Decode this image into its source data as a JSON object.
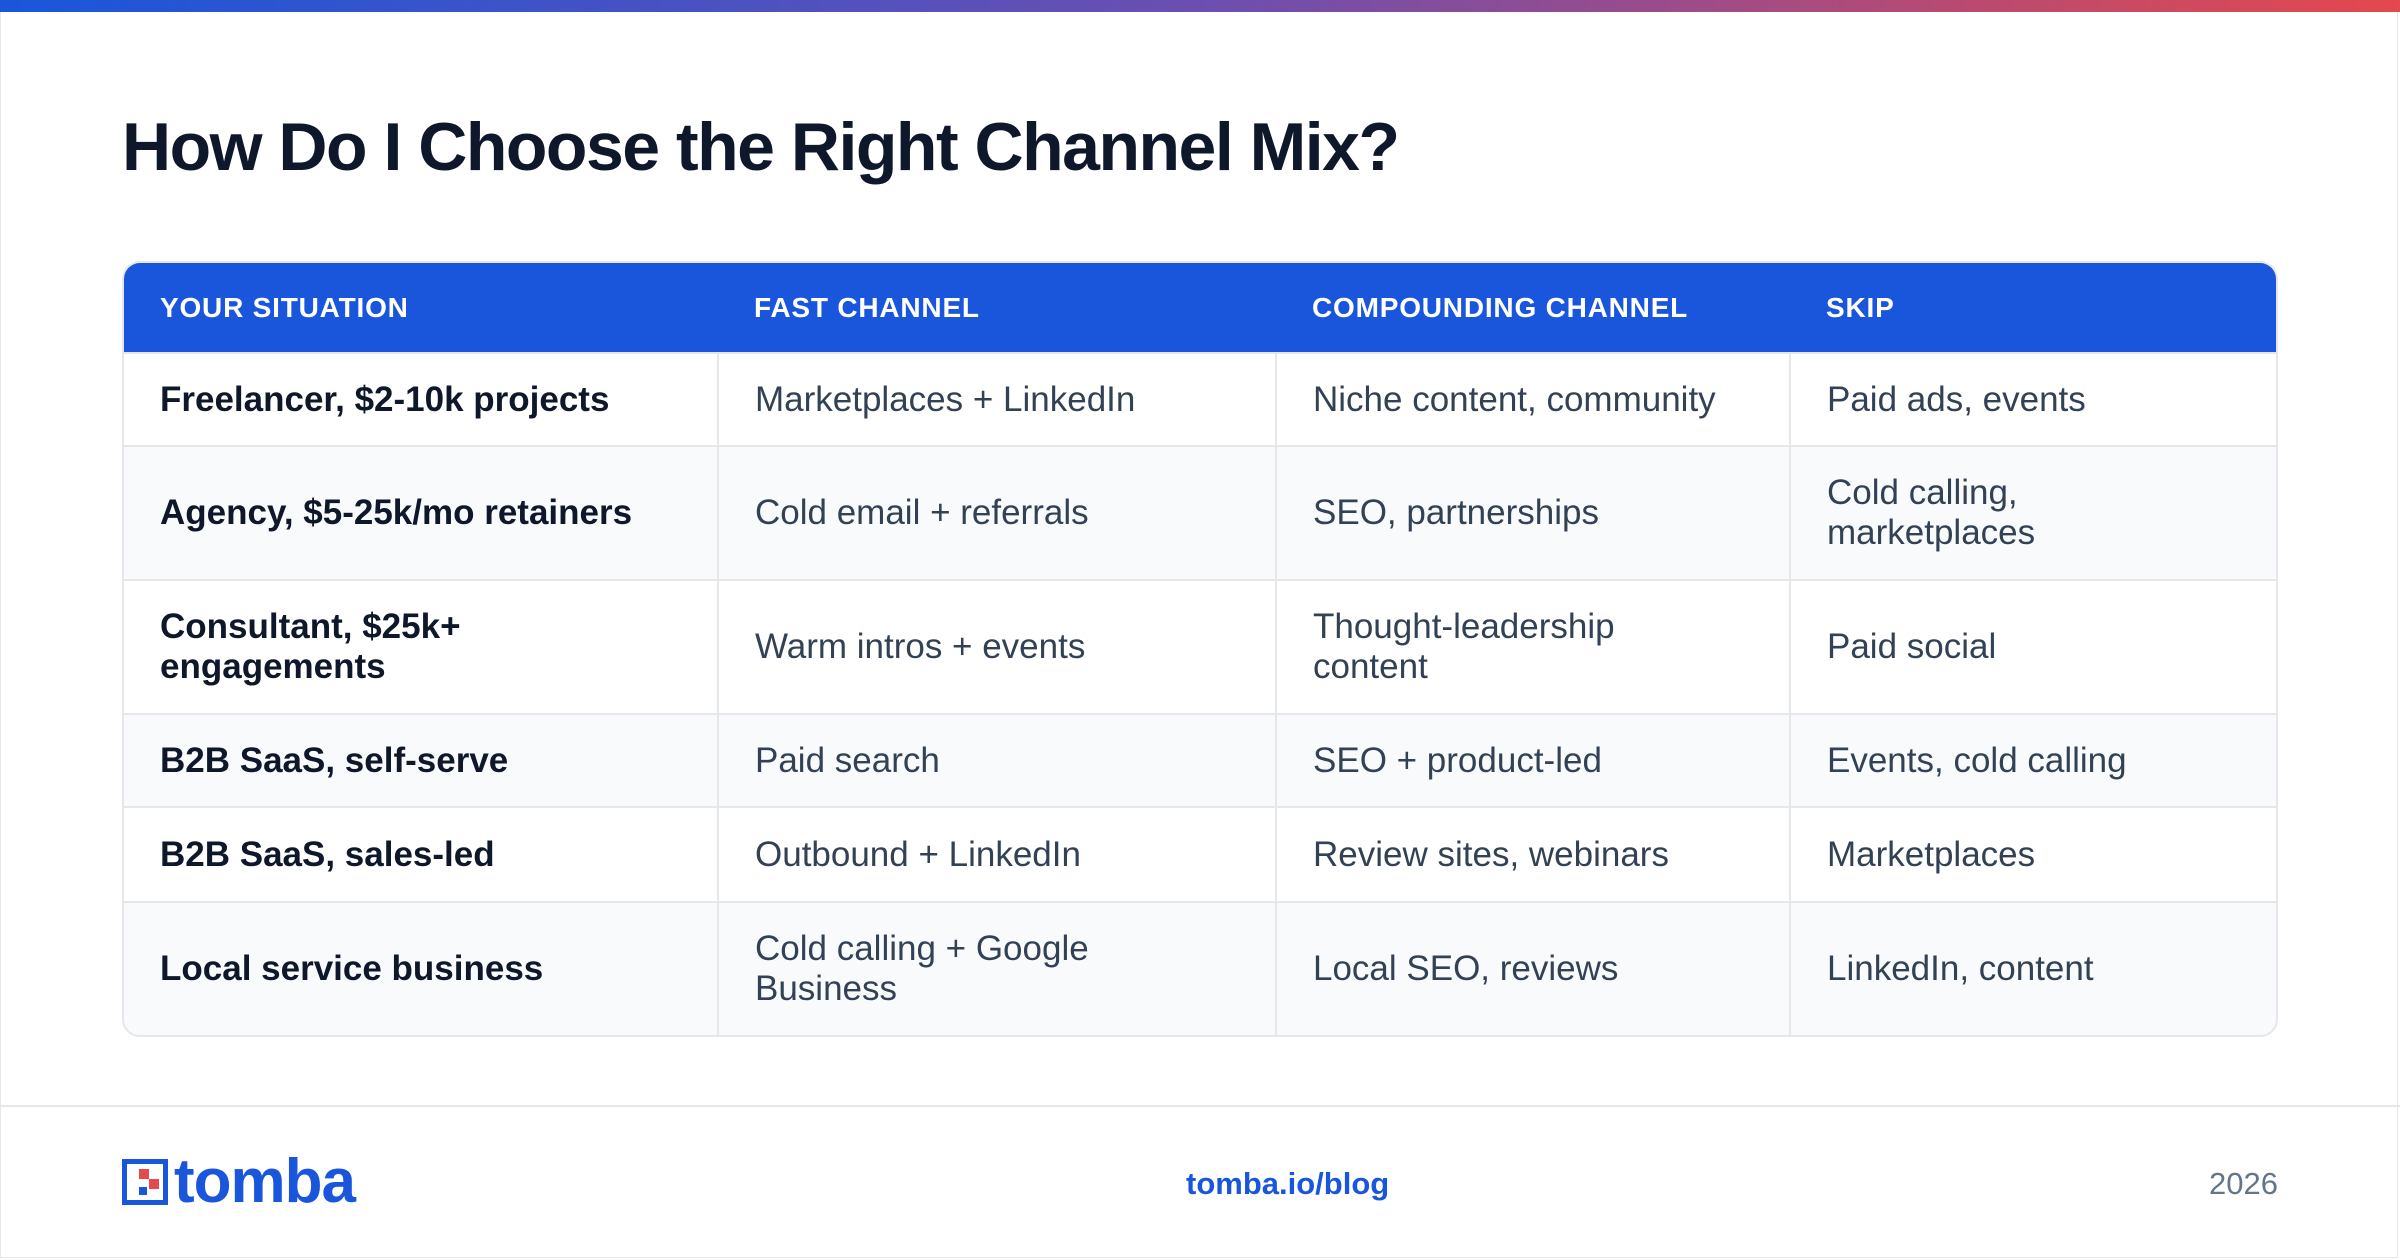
{
  "title": "How Do I Choose the Right Channel Mix?",
  "table": {
    "headers": [
      "YOUR SITUATION",
      "FAST CHANNEL",
      "COMPOUNDING CHANNEL",
      "SKIP"
    ],
    "rows": [
      [
        "Freelancer, $2-10k projects",
        "Marketplaces + LinkedIn",
        "Niche content, community",
        "Paid ads, events"
      ],
      [
        "Agency, $5-25k/mo retainers",
        "Cold email + referrals",
        "SEO, partnerships",
        "Cold calling, marketplaces"
      ],
      [
        "Consultant, $25k+ engagements",
        "Warm intros + events",
        "Thought-leadership content",
        "Paid social"
      ],
      [
        "B2B SaaS, self-serve",
        "Paid search",
        "SEO + product-led",
        "Events, cold calling"
      ],
      [
        "B2B SaaS, sales-led",
        "Outbound + LinkedIn",
        "Review sites, webinars",
        "Marketplaces"
      ],
      [
        "Local service business",
        "Cold calling + Google Business",
        "Local SEO, reviews",
        "LinkedIn, content"
      ]
    ]
  },
  "footer": {
    "logo_text": "tomba",
    "logo_icon": "tomba-logo-icon",
    "link": "tomba.io/blog",
    "year": "2026"
  },
  "colors": {
    "accent": "#1a56db",
    "gradient_start": "#1a56db",
    "gradient_end": "#e5484d",
    "logo_red": "#e5484d"
  }
}
